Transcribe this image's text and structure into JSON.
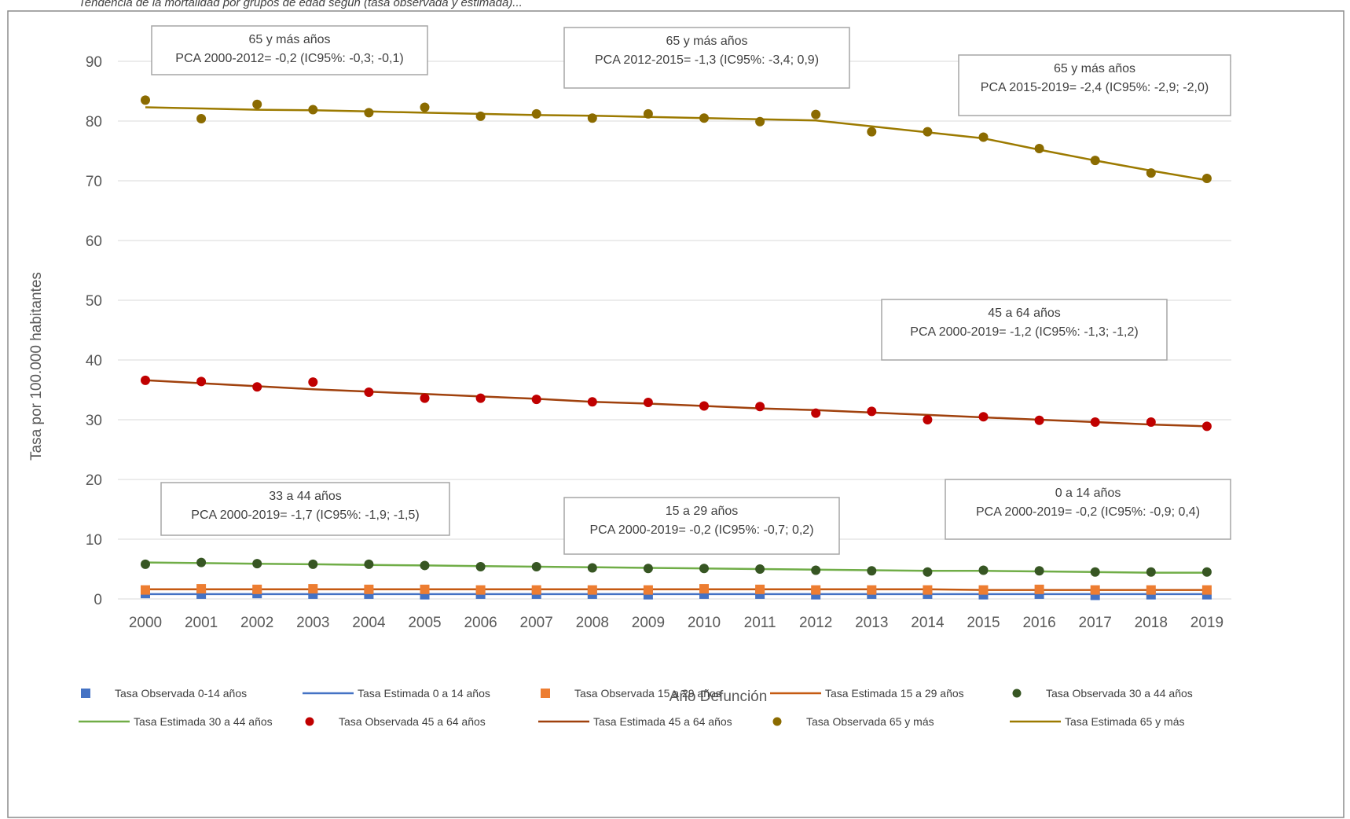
{
  "caption": "Tendencia de la mortalidad por grupos de edad según (tasa observada y estimada)...",
  "chart_data": {
    "type": "line",
    "xlabel": "Año Defunción",
    "ylabel": "Tasa por 100.000 habitantes",
    "ylim": [
      0,
      90
    ],
    "yticks": [
      0,
      10,
      20,
      30,
      40,
      50,
      60,
      70,
      80,
      90
    ],
    "grid": true,
    "legend_position": "bottom",
    "x": [
      2000,
      2001,
      2002,
      2003,
      2004,
      2005,
      2006,
      2007,
      2008,
      2009,
      2010,
      2011,
      2012,
      2013,
      2014,
      2015,
      2016,
      2017,
      2018,
      2019
    ],
    "series": [
      {
        "name": "Tasa Observada 0-14 años",
        "kind": "marker",
        "marker": "square",
        "color": "#4472C4",
        "values": [
          0.9,
          0.8,
          0.9,
          0.8,
          0.8,
          0.7,
          0.8,
          0.8,
          0.8,
          0.7,
          0.8,
          0.8,
          0.7,
          0.8,
          0.8,
          0.7,
          0.8,
          0.6,
          0.7,
          0.7
        ]
      },
      {
        "name": "Tasa Estimada 0 a 14 años",
        "kind": "line",
        "color": "#4472C4",
        "values": [
          0.8,
          0.8,
          0.8,
          0.8,
          0.8,
          0.8,
          0.8,
          0.8,
          0.8,
          0.8,
          0.8,
          0.8,
          0.8,
          0.8,
          0.8,
          0.8,
          0.8,
          0.8,
          0.8,
          0.8
        ]
      },
      {
        "name": "Tasa Observada 15 a 29 años",
        "kind": "marker",
        "marker": "square",
        "color": "#ED7D31",
        "values": [
          1.5,
          1.7,
          1.6,
          1.7,
          1.6,
          1.6,
          1.5,
          1.5,
          1.5,
          1.5,
          1.7,
          1.6,
          1.5,
          1.5,
          1.5,
          1.5,
          1.6,
          1.5,
          1.5,
          1.5
        ]
      },
      {
        "name": "Tasa Estimada 15 a 29 años",
        "kind": "line",
        "color": "#C55A11",
        "values": [
          1.6,
          1.6,
          1.6,
          1.6,
          1.6,
          1.6,
          1.6,
          1.6,
          1.6,
          1.6,
          1.6,
          1.6,
          1.6,
          1.6,
          1.6,
          1.5,
          1.5,
          1.5,
          1.5,
          1.5
        ]
      },
      {
        "name": "Tasa Observada 30 a 44 años",
        "kind": "marker",
        "marker": "circle",
        "color": "#375623",
        "values": [
          5.8,
          6.1,
          5.9,
          5.8,
          5.8,
          5.6,
          5.4,
          5.4,
          5.2,
          5.1,
          5.1,
          5.0,
          4.8,
          4.7,
          4.5,
          4.8,
          4.7,
          4.5,
          4.5,
          4.5
        ]
      },
      {
        "name": "Tasa Estimada 30 a 44 años",
        "kind": "line",
        "color": "#70AD47",
        "values": [
          6.1,
          6.0,
          5.9,
          5.8,
          5.7,
          5.6,
          5.5,
          5.4,
          5.3,
          5.2,
          5.1,
          5.0,
          4.9,
          4.8,
          4.7,
          4.7,
          4.6,
          4.5,
          4.4,
          4.4
        ]
      },
      {
        "name": "Tasa Observada 45 a 64 años",
        "kind": "marker",
        "marker": "circle",
        "color": "#C00000",
        "values": [
          36.6,
          36.4,
          35.5,
          36.3,
          34.6,
          33.6,
          33.6,
          33.4,
          33.0,
          32.9,
          32.3,
          32.2,
          31.1,
          31.4,
          30.0,
          30.5,
          29.9,
          29.6,
          29.6,
          28.9
        ]
      },
      {
        "name": "Tasa Estimada 45 a 64 años",
        "kind": "line",
        "color": "#A0410D",
        "values": [
          36.6,
          36.1,
          35.6,
          35.1,
          34.7,
          34.3,
          33.9,
          33.5,
          33.0,
          32.7,
          32.3,
          31.9,
          31.6,
          31.2,
          30.8,
          30.4,
          30.0,
          29.6,
          29.2,
          28.9
        ]
      },
      {
        "name": "Tasa Observada 65 y más",
        "kind": "marker",
        "marker": "circle",
        "color": "#8B6B00",
        "values": [
          83.5,
          80.4,
          82.8,
          81.9,
          81.4,
          82.3,
          80.8,
          81.2,
          80.5,
          81.2,
          80.5,
          79.9,
          81.1,
          78.2,
          78.2,
          77.3,
          75.4,
          73.4,
          71.3,
          70.4
        ]
      },
      {
        "name": "Tasa Estimada 65 y más",
        "kind": "line",
        "color": "#9C7A00",
        "values": [
          82.3,
          82.1,
          81.9,
          81.8,
          81.6,
          81.4,
          81.2,
          81.0,
          80.9,
          80.7,
          80.5,
          80.3,
          80.1,
          79.1,
          78.1,
          77.1,
          75.2,
          73.4,
          71.7,
          70.1
        ]
      }
    ],
    "annotations": [
      {
        "line1": "65 y más años",
        "line2": "PCA 2000-2012= -0,2 (IC95%: -0,3; -0,1)"
      },
      {
        "line1": "65 y más años",
        "line2": "PCA 2012-2015= -1,3 (IC95%: -3,4; 0,9)"
      },
      {
        "line1": "65 y más años",
        "line2": "PCA 2015-2019= -2,4 (IC95%: -2,9; -2,0)"
      },
      {
        "line1": "45 a 64 años",
        "line2": "PCA 2000-2019= -1,2 (IC95%: -1,3; -1,2)"
      },
      {
        "line1": "33 a 44 años",
        "line2": "PCA 2000-2019= -1,7 (IC95%: -1,9; -1,5)"
      },
      {
        "line1": "15 a 29 años",
        "line2": "PCA 2000-2019= -0,2 (IC95%: -0,7; 0,2)"
      },
      {
        "line1": "0 a 14 años",
        "line2": "PCA 2000-2019= -0,2 (IC95%: -0,9; 0,4)"
      }
    ]
  }
}
